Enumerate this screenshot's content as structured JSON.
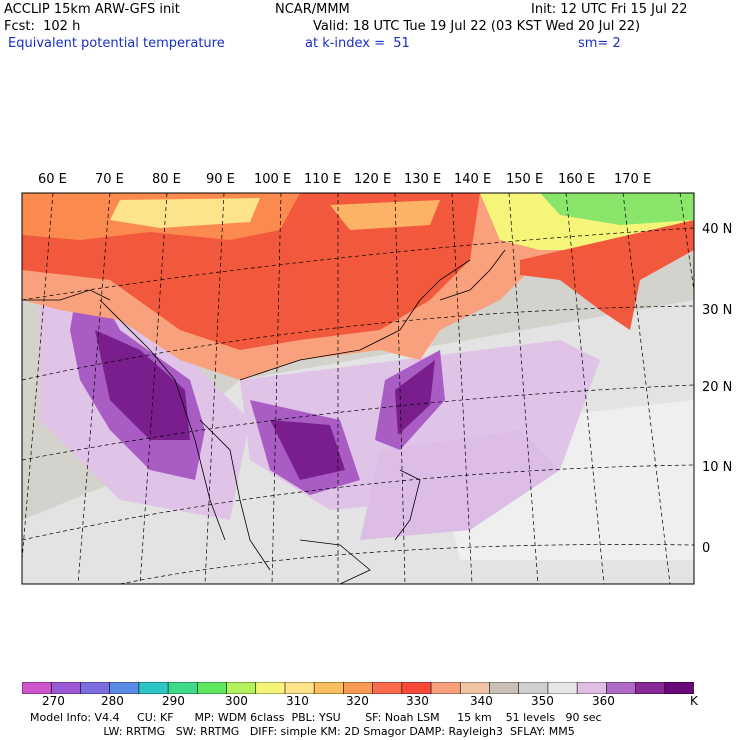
{
  "header": {
    "model": "ACCLIP 15km ARW-GFS init",
    "org": "NCAR/MMM",
    "init": "Init: 12 UTC Fri 15 Jul 22",
    "fcst": "Fcst:  102 h",
    "valid": "Valid: 18 UTC Tue 19 Jul 22 (03 KST Wed 20 Jul 22)",
    "field": "Equivalent potential temperature",
    "level": "at k-index =  51",
    "smooth": "sm= 2"
  },
  "map": {
    "lon_labels": [
      "60 E",
      "70 E",
      "80 E",
      "90 E",
      "100 E",
      "110 E",
      "120 E",
      "130 E",
      "140 E",
      "150 E",
      "160 E",
      "170 E"
    ],
    "lat_labels": [
      "40 N",
      "30 N",
      "20 N",
      "10 N",
      "0"
    ]
  },
  "colorbar": {
    "unit": "K",
    "tick_labels": [
      "270",
      "280",
      "290",
      "300",
      "310",
      "320",
      "330",
      "340",
      "350",
      "360"
    ],
    "colors": [
      "#cc55cc",
      "#9b59d6",
      "#7a6ee0",
      "#5a8ce6",
      "#2cc6c6",
      "#3fd98a",
      "#5ee85e",
      "#b4f25a",
      "#f5f57a",
      "#fde38a",
      "#fbbf62",
      "#fb9a52",
      "#fb6a4a",
      "#f54a3a",
      "#f9a17c",
      "#f2c4a6",
      "#c8c0b4",
      "#cfcfcf",
      "#e6e6e6",
      "#e0bfe6",
      "#b06ac8",
      "#8a2a9a",
      "#6a0a7a"
    ]
  },
  "footer": {
    "line1": "Model Info: V4.4     CU: KF      MP: WDM 6class  PBL: YSU       SF: Noah LSM     15 km    51 levels   90 sec",
    "line2": "                     LW: RRTMG   SW: RRTMG   DIFF: simple KM: 2D Smagor DAMP: Rayleigh3  SFLAY: MM5"
  }
}
